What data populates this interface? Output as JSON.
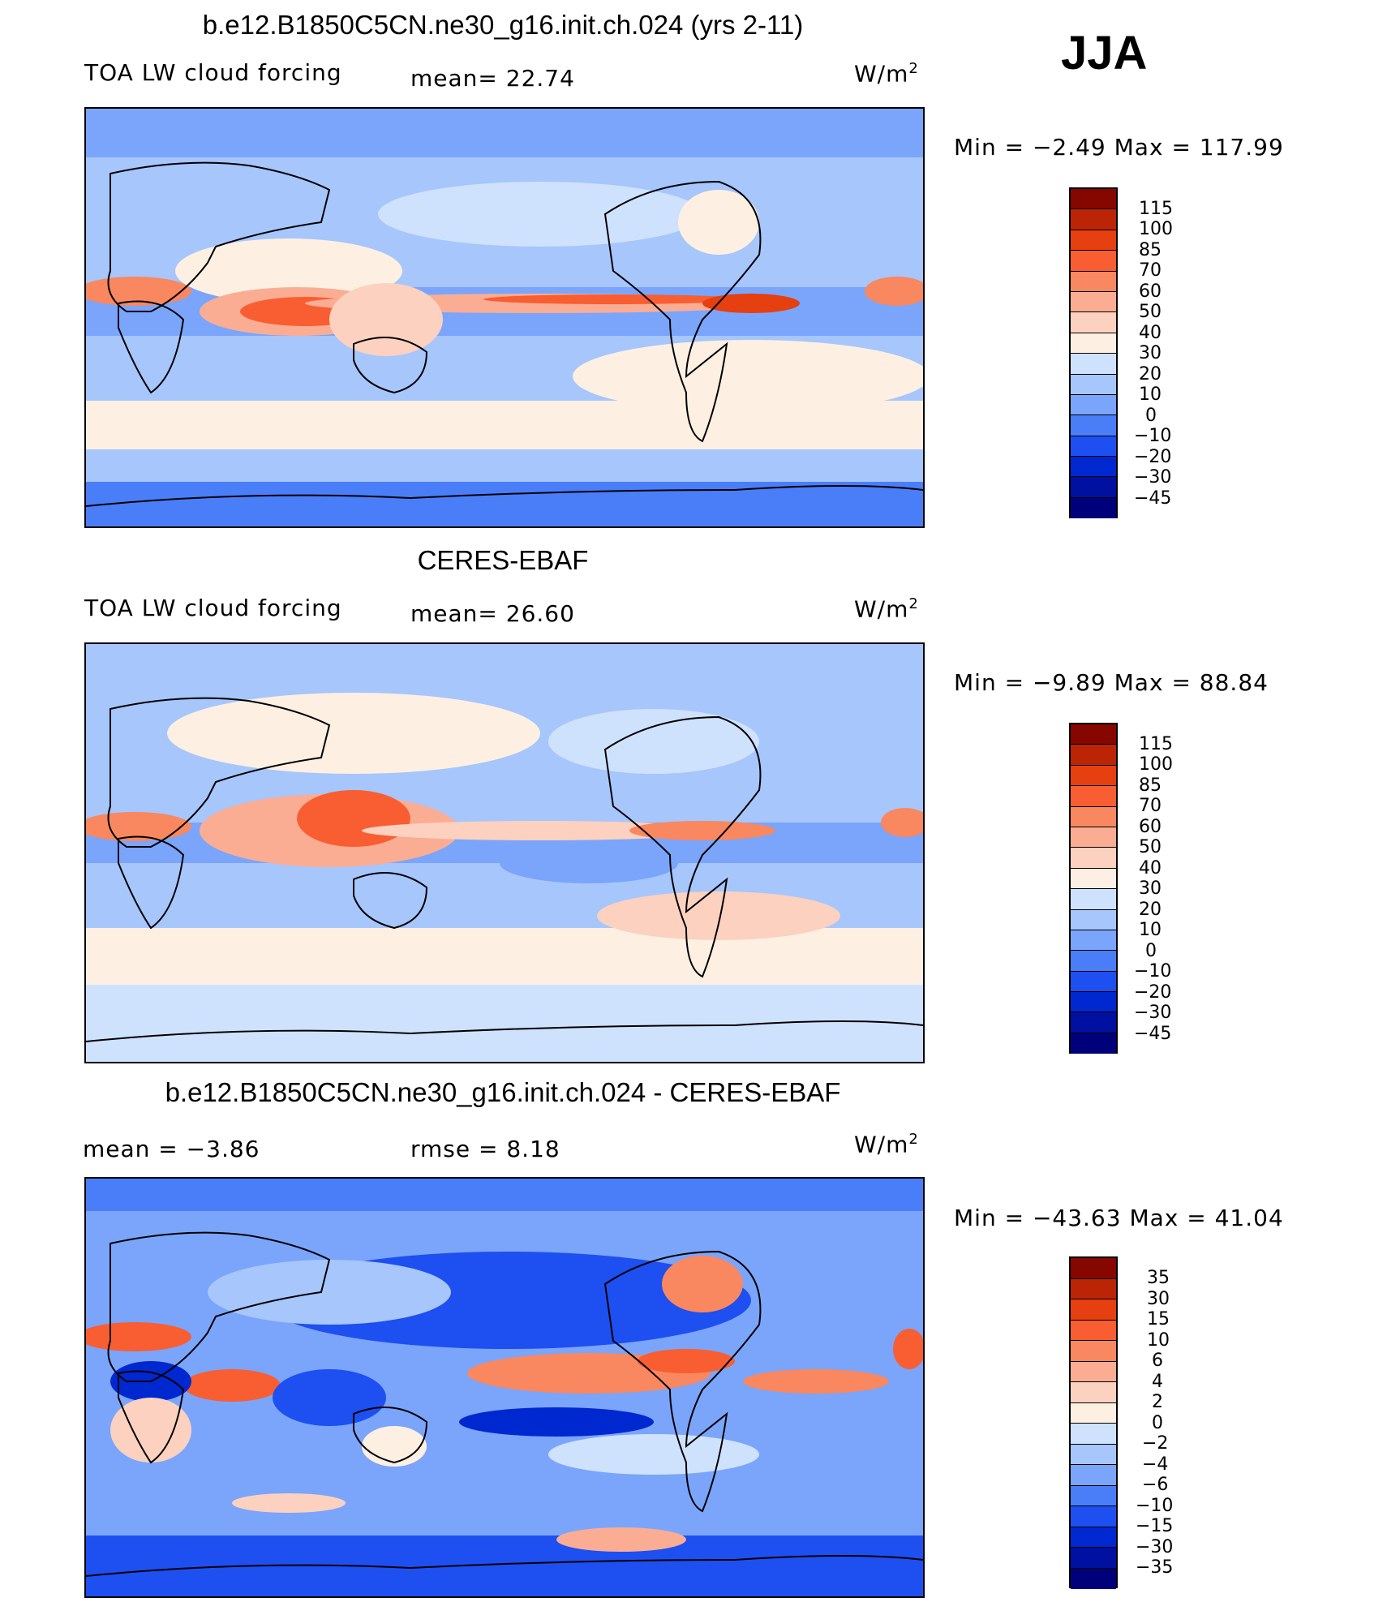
{
  "season": "JJA",
  "colors": {
    "model_scale": [
      "#00007a",
      "#0010a0",
      "#0028d0",
      "#1e4ff0",
      "#4a7ef8",
      "#7aa5fb",
      "#a6c6fc",
      "#cfe2fd",
      "#fdf0e2",
      "#fcd1bf",
      "#fbad94",
      "#f9875f",
      "#f85e32",
      "#e63f10",
      "#bb2505",
      "#860600"
    ],
    "diff_scale": [
      "#00007a",
      "#0010a0",
      "#0028d0",
      "#1e4ff0",
      "#4a7ef8",
      "#7aa5fb",
      "#a6c6fc",
      "#cfe2fd",
      "#fdf0e2",
      "#fcd1bf",
      "#fbad94",
      "#f9875f",
      "#f85e32",
      "#e63f10",
      "#bb2505",
      "#860600"
    ]
  },
  "panels": [
    {
      "title": "b.e12.B1850C5CN.ne30_g16.init.ch.024 (yrs 2-11)",
      "left_label": "TOA LW cloud forcing",
      "mid_label": "mean=   22.74",
      "units": "W/m",
      "units_sup": "2",
      "minmax": "Min =   −2.49  Max  =  117.99",
      "levels": [
        "115",
        "100",
        "85",
        "70",
        "60",
        "50",
        "40",
        "30",
        "20",
        "10",
        "0",
        "−10",
        "−20",
        "−30",
        "−45"
      ]
    },
    {
      "title": "CERES-EBAF",
      "left_label": "TOA LW cloud forcing",
      "mid_label": "mean=   26.60",
      "units": "W/m",
      "units_sup": "2",
      "minmax": "Min =   −9.89  Max  =    88.84",
      "levels": [
        "115",
        "100",
        "85",
        "70",
        "60",
        "50",
        "40",
        "30",
        "20",
        "10",
        "0",
        "−10",
        "−20",
        "−30",
        "−45"
      ]
    },
    {
      "title": "b.e12.B1850C5CN.ne30_g16.init.ch.024 - CERES-EBAF",
      "left_label": "mean  =    −3.86",
      "mid_label": "rmse  =     8.18",
      "units": "W/m",
      "units_sup": "2",
      "minmax": "Min  = −43.63  Max  =    41.04",
      "levels": [
        "35",
        "30",
        "15",
        "10",
        "6",
        "4",
        "2",
        "0",
        "−2",
        "−4",
        "−6",
        "−10",
        "−15",
        "−30",
        "−35"
      ]
    }
  ]
}
